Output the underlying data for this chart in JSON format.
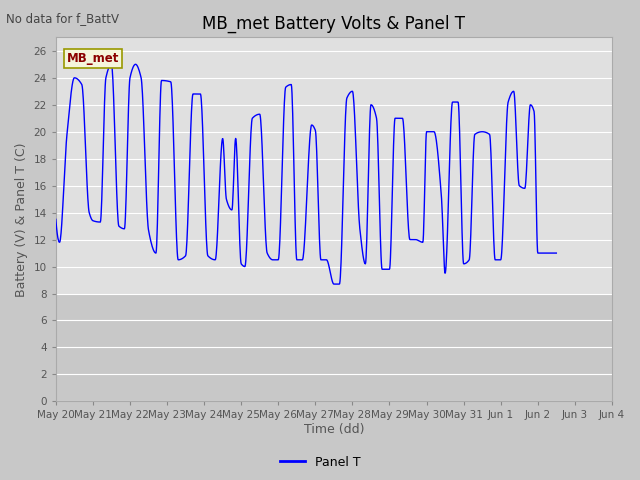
{
  "title": "MB_met Battery Volts & Panel T",
  "no_data_text": "No data for f_BattV",
  "ylabel": "Battery (V) & Panel T (C)",
  "xlabel": "Time (dd)",
  "legend_label": "Panel T",
  "line_color": "#0000ff",
  "fig_bg_color": "#c8c8c8",
  "plot_bg_color": "#e0e0e0",
  "lower_bg_color": "#c8c8c8",
  "ylim": [
    0,
    27
  ],
  "yticks": [
    0,
    2,
    4,
    6,
    8,
    10,
    12,
    14,
    16,
    18,
    20,
    22,
    24,
    26
  ],
  "xtick_labels": [
    "May 20",
    "May 21",
    "May 22",
    "May 23",
    "May 24",
    "May 25",
    "May 26",
    "May 27",
    "May 28",
    "May 29",
    "May 30",
    "May 31",
    "Jun 1",
    "Jun 2",
    "Jun 3",
    "Jun 4"
  ],
  "mb_met_label": "MB_met",
  "mb_met_text_color": "#8b0000",
  "mb_met_box_facecolor": "#f5f5dc",
  "mb_met_box_edgecolor": "#999900",
  "title_fontsize": 12,
  "axis_label_fontsize": 9,
  "tick_fontsize": 7.5,
  "legend_fontsize": 9,
  "no_data_fontsize": 8.5,
  "key_points": [
    [
      0.0,
      13.5
    ],
    [
      0.1,
      11.8
    ],
    [
      0.3,
      19.8
    ],
    [
      0.5,
      24.0
    ],
    [
      0.7,
      23.5
    ],
    [
      0.9,
      14.0
    ],
    [
      1.0,
      13.4
    ],
    [
      1.2,
      13.3
    ],
    [
      1.35,
      24.0
    ],
    [
      1.5,
      25.0
    ],
    [
      1.7,
      13.0
    ],
    [
      1.85,
      12.8
    ],
    [
      2.0,
      24.0
    ],
    [
      2.15,
      25.0
    ],
    [
      2.3,
      24.0
    ],
    [
      2.5,
      12.7
    ],
    [
      2.7,
      11.0
    ],
    [
      2.85,
      23.8
    ],
    [
      3.1,
      23.7
    ],
    [
      3.3,
      10.5
    ],
    [
      3.5,
      10.8
    ],
    [
      3.7,
      22.8
    ],
    [
      3.9,
      22.8
    ],
    [
      4.1,
      10.8
    ],
    [
      4.3,
      10.5
    ],
    [
      4.5,
      19.5
    ],
    [
      4.6,
      15.0
    ],
    [
      4.75,
      14.2
    ],
    [
      4.85,
      19.5
    ],
    [
      5.0,
      10.2
    ],
    [
      5.1,
      10.0
    ],
    [
      5.3,
      21.0
    ],
    [
      5.5,
      21.3
    ],
    [
      5.7,
      11.0
    ],
    [
      5.85,
      10.5
    ],
    [
      6.0,
      10.5
    ],
    [
      6.2,
      23.3
    ],
    [
      6.35,
      23.5
    ],
    [
      6.5,
      10.5
    ],
    [
      6.65,
      10.5
    ],
    [
      6.9,
      20.5
    ],
    [
      7.0,
      20.1
    ],
    [
      7.15,
      10.5
    ],
    [
      7.3,
      10.5
    ],
    [
      7.5,
      8.7
    ],
    [
      7.65,
      8.7
    ],
    [
      7.85,
      22.5
    ],
    [
      8.0,
      23.0
    ],
    [
      8.2,
      12.8
    ],
    [
      8.35,
      10.2
    ],
    [
      8.5,
      22.0
    ],
    [
      8.65,
      21.0
    ],
    [
      8.8,
      9.8
    ],
    [
      9.0,
      9.8
    ],
    [
      9.15,
      21.0
    ],
    [
      9.35,
      21.0
    ],
    [
      9.55,
      12.0
    ],
    [
      9.7,
      12.0
    ],
    [
      9.9,
      11.8
    ],
    [
      10.0,
      20.0
    ],
    [
      10.2,
      20.0
    ],
    [
      10.4,
      15.2
    ],
    [
      10.5,
      9.5
    ],
    [
      10.7,
      22.2
    ],
    [
      10.85,
      22.2
    ],
    [
      11.0,
      10.2
    ],
    [
      11.15,
      10.5
    ],
    [
      11.3,
      19.8
    ],
    [
      11.5,
      20.0
    ],
    [
      11.7,
      19.8
    ],
    [
      11.85,
      10.5
    ],
    [
      12.0,
      10.5
    ],
    [
      12.2,
      22.2
    ],
    [
      12.35,
      23.0
    ],
    [
      12.5,
      16.0
    ],
    [
      12.65,
      15.8
    ],
    [
      12.8,
      22.0
    ],
    [
      12.9,
      21.5
    ],
    [
      13.0,
      11.0
    ],
    [
      13.15,
      11.0
    ],
    [
      13.3,
      11.0
    ]
  ]
}
